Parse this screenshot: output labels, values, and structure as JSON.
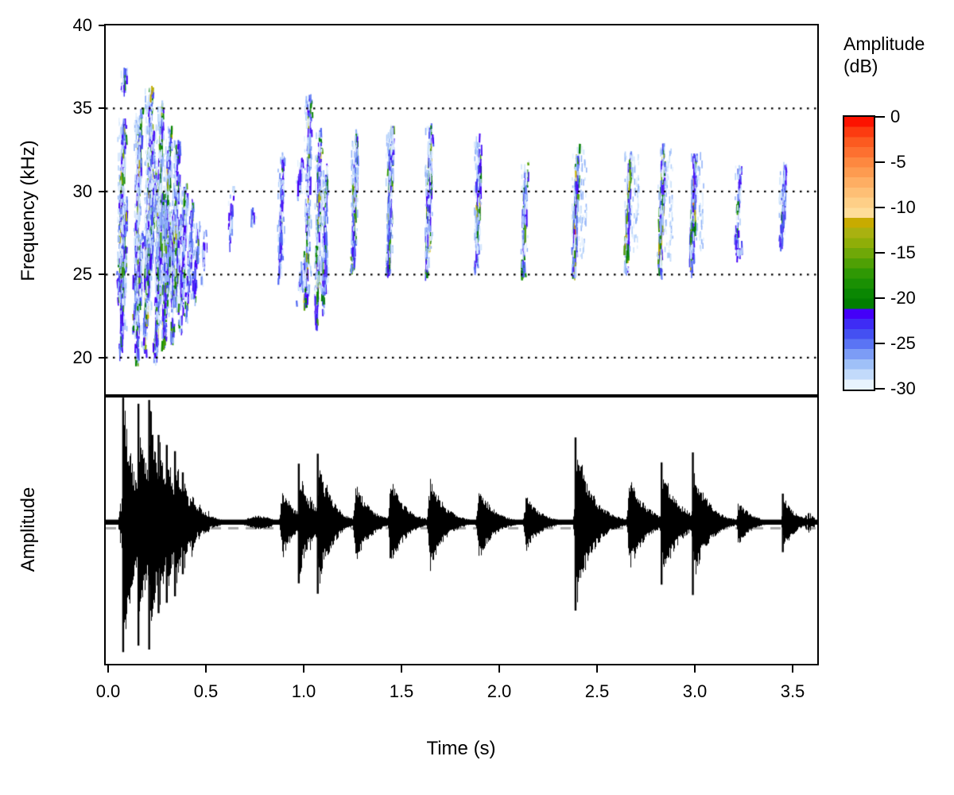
{
  "spectrogram": {
    "ylabel": "Frequency (kHz)",
    "yticks": [
      "40",
      "35",
      "30",
      "25",
      "20"
    ],
    "ytick_values": [
      40,
      35,
      30,
      25,
      20
    ],
    "gridlines_khz": [
      35,
      30,
      25,
      20
    ],
    "freq_range_khz": [
      17.7,
      40
    ]
  },
  "oscillogram": {
    "ylabel": "Amplitude",
    "baseline_dash_color": "#a8a8a8"
  },
  "time_axis": {
    "label": "Time (s)",
    "ticks": [
      "0.0",
      "0.5",
      "1.0",
      "1.5",
      "2.0",
      "2.5",
      "3.0",
      "3.5"
    ],
    "tick_values": [
      0.0,
      0.5,
      1.0,
      1.5,
      2.0,
      2.5,
      3.0,
      3.5
    ],
    "range_s": [
      0,
      3.62
    ]
  },
  "legend": {
    "title_line1": "Amplitude",
    "title_line2": "(dB)",
    "ticks": [
      "0",
      "-5",
      "-10",
      "-15",
      "-20",
      "-25",
      "-30"
    ],
    "tick_values": [
      0,
      -5,
      -10,
      -15,
      -20,
      -25,
      -30
    ],
    "range_db": [
      -30,
      0
    ],
    "palette_top_to_bottom": [
      "#fc1300",
      "#fc3b10",
      "#fc5a20",
      "#fd7030",
      "#fd8840",
      "#fd9b50",
      "#feae63",
      "#febf75",
      "#fecf87",
      "#fedd9a",
      "#c8ab00",
      "#a9b110",
      "#8fae08",
      "#6fa808",
      "#4fa005",
      "#2f9804",
      "#1a9003",
      "#0a8702",
      "#027e01",
      "#4400f8",
      "#3e2cf5",
      "#4450f2",
      "#5a74f4",
      "#7c9cf6",
      "#9fc0f8",
      "#c2dafb",
      "#e8f3fe"
    ]
  },
  "chart_data": {
    "type": "heatmap",
    "subtype": "spectrogram_with_oscillogram",
    "title": "",
    "xlabel": "Time (s)",
    "ylabel_top": "Frequency (kHz)",
    "ylabel_bottom": "Amplitude",
    "x_range_s": [
      0,
      3.62
    ],
    "y_range_khz": [
      17.7,
      40
    ],
    "amplitude_scale_db": [
      -30,
      0
    ],
    "stroke_colors": {
      "light_blues": [
        "#e4f0fd",
        "#cfe4fc",
        "#b3d0fa",
        "#93b4f8"
      ],
      "blues": [
        "#6f8cf5",
        "#5168f3",
        "#4340f2",
        "#4b18f7",
        "#4400f8"
      ],
      "greens": [
        "#027e01",
        "#0a8702",
        "#1b9203",
        "#349b04",
        "#57a306"
      ],
      "yellows": [
        "#8fae08",
        "#a9b110",
        "#c8ab00",
        "#d8c219"
      ],
      "hot": [
        "#fd9b50",
        "#fd7030",
        "#fc3b10"
      ]
    },
    "pulses": [
      {
        "t": 0.068,
        "f0": 23.5,
        "f1": 34.3,
        "k": 0.75,
        "lean": 8
      },
      {
        "t": 0.078,
        "f0": 20.2,
        "f1": 29.5,
        "k": 0.6,
        "lean": 8
      },
      {
        "t": 0.085,
        "f0": 36.0,
        "f1": 37.5,
        "k": 0.15,
        "blue": 0.8
      },
      {
        "t": 0.15,
        "f0": 21.5,
        "f1": 35.0,
        "k": 0.8,
        "lean": 8
      },
      {
        "t": 0.158,
        "f0": 19.6,
        "f1": 27.5,
        "k": 0.55,
        "lean": 8
      },
      {
        "t": 0.205,
        "f0": 20.3,
        "f1": 36.2,
        "k": 0.95,
        "lean": 8
      },
      {
        "t": 0.215,
        "f0": 23.5,
        "f1": 33.5,
        "k": 0.75,
        "lean": 8
      },
      {
        "t": 0.225,
        "f0": 25.0,
        "f1": 31.0,
        "k": 0.5,
        "lean": 8
      },
      {
        "t": 0.258,
        "f0": 19.8,
        "f1": 35.2,
        "k": 0.85,
        "lean": 8
      },
      {
        "t": 0.268,
        "f0": 22.0,
        "f1": 30.0,
        "k": 0.5,
        "lean": 8
      },
      {
        "t": 0.298,
        "f0": 20.5,
        "f1": 33.8,
        "k": 0.8,
        "lean": 8
      },
      {
        "t": 0.31,
        "f0": 22.5,
        "f1": 29.0,
        "k": 0.5,
        "lean": 8
      },
      {
        "t": 0.342,
        "f0": 20.8,
        "f1": 33.0,
        "k": 0.7,
        "lean": 8
      },
      {
        "t": 0.352,
        "f0": 23.0,
        "f1": 28.5,
        "k": 0.4,
        "lean": 8
      },
      {
        "t": 0.383,
        "f0": 21.5,
        "f1": 30.3,
        "k": 0.55,
        "lean": 8
      },
      {
        "t": 0.415,
        "f0": 22.3,
        "f1": 29.3,
        "k": 0.4,
        "lean": 8
      },
      {
        "t": 0.45,
        "f0": 23.5,
        "f1": 28.0,
        "k": 0.28,
        "blue": 0.5
      },
      {
        "t": 0.49,
        "f0": 24.5,
        "f1": 27.5,
        "k": 0.15,
        "blue": 0.6
      },
      {
        "t": 0.63,
        "f0": 26.5,
        "f1": 30.5,
        "k": 0.12,
        "blue": 0.9
      },
      {
        "t": 0.74,
        "f0": 27.8,
        "f1": 29.0,
        "k": 0.08,
        "blue": 1
      },
      {
        "t": 0.885,
        "f0": 24.5,
        "f1": 32.2,
        "k": 0.35,
        "blue": 0.75
      },
      {
        "t": 0.98,
        "f0": 29.5,
        "f1": 31.8,
        "k": 0.18,
        "blue": 0.7
      },
      {
        "t": 0.985,
        "f0": 23.0,
        "f1": 25.5,
        "k": 0.12,
        "blue": 0.8
      },
      {
        "t": 1.022,
        "f0": 23.0,
        "f1": 35.6,
        "k": 0.65
      },
      {
        "t": 1.075,
        "f0": 21.8,
        "f1": 33.5,
        "k": 0.75
      },
      {
        "t": 1.108,
        "f0": 22.5,
        "f1": 31.5,
        "k": 0.55
      },
      {
        "t": 1.26,
        "f0": 25.2,
        "f1": 33.5,
        "k": 0.7
      },
      {
        "t": 1.44,
        "f0": 24.8,
        "f1": 33.8,
        "k": 0.75
      },
      {
        "t": 1.64,
        "f0": 24.8,
        "f1": 33.8,
        "k": 0.75
      },
      {
        "t": 1.89,
        "f0": 25.2,
        "f1": 33.2,
        "k": 0.65
      },
      {
        "t": 2.13,
        "f0": 25.0,
        "f1": 31.8,
        "k": 0.5
      },
      {
        "t": 2.39,
        "f0": 24.8,
        "f1": 32.6,
        "k": 0.85,
        "echo": 1
      },
      {
        "t": 2.66,
        "f0": 25.2,
        "f1": 32.4,
        "k": 0.8,
        "echo": 1
      },
      {
        "t": 2.83,
        "f0": 24.8,
        "f1": 32.6,
        "k": 0.9,
        "echo": 1
      },
      {
        "t": 2.99,
        "f0": 25.2,
        "f1": 32.2,
        "k": 0.85,
        "echo": 1
      },
      {
        "t": 3.22,
        "f0": 26.8,
        "f1": 31.5,
        "k": 0.3,
        "blue": 0.85
      },
      {
        "t": 3.225,
        "f0": 26.2,
        "f1": 26.8,
        "k": 0.1,
        "blue": 0.9
      },
      {
        "t": 3.45,
        "f0": 26.5,
        "f1": 31.6,
        "k": 0.4,
        "blue": 0.4
      }
    ],
    "bursts": [
      {
        "t": 0.077,
        "a": 0.99,
        "d": 14,
        "s": 1.0
      },
      {
        "t": 0.155,
        "a": 0.92,
        "d": 14,
        "s": 0.95
      },
      {
        "t": 0.21,
        "a": 0.96,
        "d": 13,
        "s": 0.98
      },
      {
        "t": 0.258,
        "a": 0.66,
        "d": 12,
        "s": 0.7
      },
      {
        "t": 0.3,
        "a": 0.6,
        "d": 11,
        "s": 0.62
      },
      {
        "t": 0.342,
        "a": 0.55,
        "d": 10,
        "s": 0.57
      },
      {
        "t": 0.382,
        "a": 0.38,
        "d": 9,
        "s": 0.4
      },
      {
        "t": 0.42,
        "a": 0.27,
        "d": 8
      },
      {
        "t": 0.458,
        "a": 0.17,
        "d": 7
      },
      {
        "t": 0.535,
        "a": 0.045,
        "w": 9
      },
      {
        "t": 0.77,
        "a": 0.055,
        "w": 14
      },
      {
        "t": 0.805,
        "a": 0.05,
        "w": 8
      },
      {
        "t": 0.885,
        "a": 0.28,
        "d": 16
      },
      {
        "t": 0.975,
        "a": 0.44,
        "d": 12,
        "s": 0.47
      },
      {
        "t": 1.025,
        "a": 0.22,
        "d": 12
      },
      {
        "t": 1.072,
        "a": 0.5,
        "d": 14,
        "s": 0.55
      },
      {
        "t": 1.105,
        "a": 0.36,
        "d": 14
      },
      {
        "t": 1.26,
        "a": 0.32,
        "d": 18
      },
      {
        "t": 1.44,
        "a": 0.35,
        "d": 18
      },
      {
        "t": 1.64,
        "a": 0.38,
        "d": 18
      },
      {
        "t": 1.89,
        "a": 0.3,
        "d": 18
      },
      {
        "t": 2.13,
        "a": 0.23,
        "d": 18
      },
      {
        "t": 2.39,
        "a": 0.64,
        "d": 20,
        "s": 0.68
      },
      {
        "t": 2.66,
        "a": 0.38,
        "d": 20
      },
      {
        "t": 2.83,
        "a": 0.44,
        "d": 20,
        "s": 0.48
      },
      {
        "t": 2.99,
        "a": 0.46,
        "d": 18,
        "s": 0.56
      },
      {
        "t": 3.22,
        "a": 0.17,
        "d": 16
      },
      {
        "t": 3.45,
        "a": 0.21,
        "d": 14,
        "s": 0.23
      }
    ],
    "noise_bands": [
      {
        "t0": 0.05,
        "t1": 0.52,
        "a": 0.11
      },
      {
        "t0": 3.47,
        "t1": 3.61,
        "a": 0.055
      }
    ]
  }
}
